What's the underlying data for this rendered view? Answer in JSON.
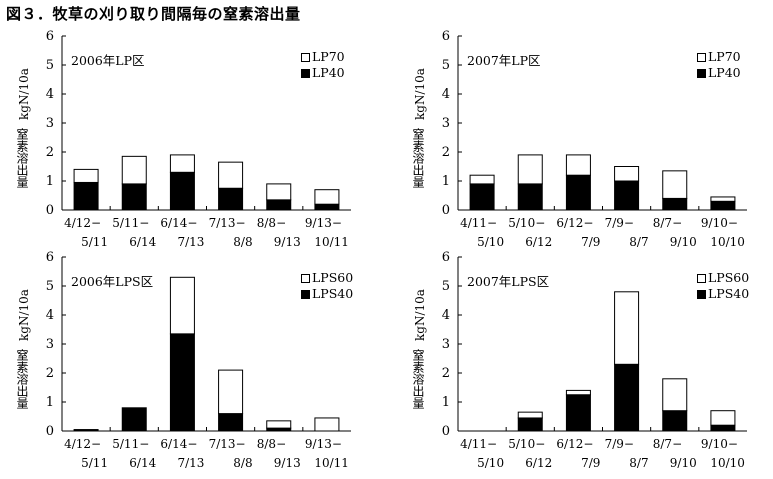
{
  "figure_title": "図３．牧草の刈り取り間隔毎の窒素溶出量",
  "y_axis": {
    "title": "窒素溶出量",
    "unit": "kgN/10a"
  },
  "colors": {
    "upper_series": "#ffffff",
    "lower_series": "#000000",
    "stroke": "#000000"
  },
  "chart_data": [
    {
      "type": "bar",
      "stacked": true,
      "title": "2006年LP区",
      "ylim": [
        0,
        6
      ],
      "yticks": [
        "0",
        "1",
        "2",
        "3",
        "4",
        "5",
        "6"
      ],
      "categories": [
        {
          "top": "4/12−",
          "bottom": "5/11"
        },
        {
          "top": "5/11−",
          "bottom": "6/14"
        },
        {
          "top": "6/14−",
          "bottom": "7/13"
        },
        {
          "top": "7/13−",
          "bottom": "8/8"
        },
        {
          "top": "8/8−",
          "bottom": "9/13"
        },
        {
          "top": "9/13−",
          "bottom": "10/11"
        }
      ],
      "series": [
        {
          "name": "LP40",
          "values": [
            0.95,
            0.9,
            1.3,
            0.75,
            0.35,
            0.2
          ]
        },
        {
          "name": "LP70",
          "values": [
            0.45,
            0.95,
            0.6,
            0.9,
            0.55,
            0.5
          ]
        }
      ],
      "legend_position": "top-right"
    },
    {
      "type": "bar",
      "stacked": true,
      "title": "2007年LP区",
      "ylim": [
        0,
        6
      ],
      "yticks": [
        "0",
        "1",
        "2",
        "3",
        "4",
        "5",
        "6"
      ],
      "categories": [
        {
          "top": "4/11−",
          "bottom": "5/10"
        },
        {
          "top": "5/10−",
          "bottom": "6/12"
        },
        {
          "top": "6/12−",
          "bottom": "7/9"
        },
        {
          "top": "7/9−",
          "bottom": "8/7"
        },
        {
          "top": "8/7−",
          "bottom": "9/10"
        },
        {
          "top": "9/10−",
          "bottom": "10/10"
        }
      ],
      "series": [
        {
          "name": "LP40",
          "values": [
            0.9,
            0.9,
            1.2,
            1.0,
            0.4,
            0.3
          ]
        },
        {
          "name": "LP70",
          "values": [
            0.3,
            1.0,
            0.7,
            0.5,
            0.95,
            0.15
          ]
        }
      ],
      "legend_position": "top-right"
    },
    {
      "type": "bar",
      "stacked": true,
      "title": "2006年LPS区",
      "ylim": [
        0,
        6
      ],
      "yticks": [
        "0",
        "1",
        "2",
        "3",
        "4",
        "5",
        "6"
      ],
      "categories": [
        {
          "top": "4/12−",
          "bottom": "5/11"
        },
        {
          "top": "5/11−",
          "bottom": "6/14"
        },
        {
          "top": "6/14−",
          "bottom": "7/13"
        },
        {
          "top": "7/13−",
          "bottom": "8/8"
        },
        {
          "top": "8/8−",
          "bottom": "9/13"
        },
        {
          "top": "9/13−",
          "bottom": "10/11"
        }
      ],
      "series": [
        {
          "name": "LPS40",
          "values": [
            0.05,
            0.8,
            3.35,
            0.6,
            0.1,
            0.0
          ]
        },
        {
          "name": "LPS60",
          "values": [
            0.0,
            0.0,
            1.95,
            1.5,
            0.25,
            0.45
          ]
        }
      ],
      "legend_position": "top-right"
    },
    {
      "type": "bar",
      "stacked": true,
      "title": "2007年LPS区",
      "ylim": [
        0,
        6
      ],
      "yticks": [
        "0",
        "1",
        "2",
        "3",
        "4",
        "5",
        "6"
      ],
      "categories": [
        {
          "top": "4/11−",
          "bottom": "5/10"
        },
        {
          "top": "5/10−",
          "bottom": "6/12"
        },
        {
          "top": "6/12−",
          "bottom": "7/9"
        },
        {
          "top": "7/9−",
          "bottom": "8/7"
        },
        {
          "top": "8/7−",
          "bottom": "9/10"
        },
        {
          "top": "9/10−",
          "bottom": "10/10"
        }
      ],
      "series": [
        {
          "name": "LPS40",
          "values": [
            0.0,
            0.45,
            1.25,
            2.3,
            0.7,
            0.2
          ]
        },
        {
          "name": "LPS60",
          "values": [
            0.0,
            0.2,
            0.15,
            2.5,
            1.1,
            0.5
          ]
        }
      ],
      "legend_position": "top-right"
    }
  ]
}
